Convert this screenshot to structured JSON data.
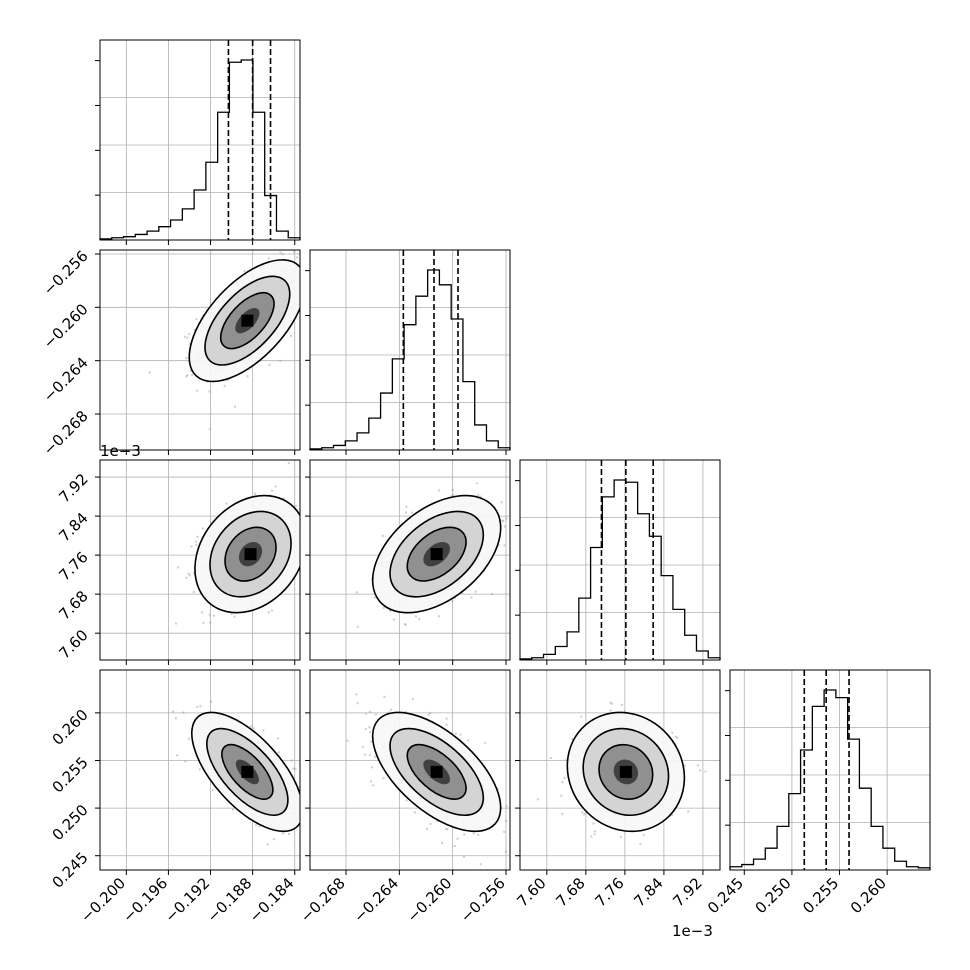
{
  "chart_data": {
    "type": "corner",
    "grid": true,
    "params": [
      {
        "range": [
          -0.2025,
          -0.1835
        ],
        "ticks": [
          -0.2,
          -0.196,
          -0.192,
          -0.188,
          -0.184
        ],
        "tick_labels": [
          "−0.200",
          "−0.196",
          "−0.192",
          "−0.188",
          "−0.184"
        ],
        "quantiles": [
          -0.1903,
          -0.188,
          -0.1863
        ],
        "offset_label": ""
      },
      {
        "range": [
          -0.2707,
          -0.2557
        ],
        "ticks": [
          -0.268,
          -0.264,
          -0.26,
          -0.256
        ],
        "tick_labels": [
          "−0.268",
          "−0.264",
          "−0.260",
          "−0.256"
        ],
        "quantiles": [
          -0.2637,
          -0.2614,
          -0.2596
        ],
        "offset_label": ""
      },
      {
        "range": [
          7.545,
          7.955
        ],
        "ticks": [
          7.6,
          7.68,
          7.76,
          7.84,
          7.92
        ],
        "tick_labels": [
          "7.60",
          "7.68",
          "7.76",
          "7.84",
          "7.92"
        ],
        "quantiles": [
          7.712,
          7.762,
          7.818
        ],
        "offset_label": "1e−3"
      },
      {
        "range": [
          0.2435,
          0.2645
        ],
        "ticks": [
          0.245,
          0.25,
          0.255,
          0.26
        ],
        "tick_labels": [
          "0.245",
          "0.250",
          "0.255",
          "0.260"
        ],
        "quantiles": [
          0.2513,
          0.2536,
          0.256
        ],
        "offset_label": ""
      }
    ],
    "histograms": [
      [
        1,
        2,
        3,
        5,
        8,
        12,
        18,
        28,
        45,
        70,
        115,
        160,
        162,
        115,
        40,
        8,
        2
      ],
      [
        1,
        2,
        4,
        8,
        15,
        28,
        50,
        80,
        110,
        135,
        158,
        145,
        115,
        60,
        22,
        8,
        2
      ],
      [
        1,
        2,
        5,
        12,
        25,
        55,
        100,
        145,
        160,
        158,
        130,
        110,
        75,
        45,
        22,
        8,
        2
      ],
      [
        3,
        5,
        10,
        20,
        40,
        70,
        110,
        150,
        165,
        158,
        120,
        75,
        40,
        20,
        8,
        3,
        2
      ]
    ],
    "pairs": [
      {
        "row": 1,
        "col": 0,
        "mean": [
          -0.1885,
          -0.261
        ],
        "sd": [
          0.0023,
          0.0019
        ],
        "corr": 0.6
      },
      {
        "row": 2,
        "col": 0,
        "mean": [
          -0.1882,
          7.762
        ],
        "sd": [
          0.0022,
          0.05
        ],
        "corr": 0.25
      },
      {
        "row": 2,
        "col": 1,
        "mean": [
          -0.2612,
          7.762
        ],
        "sd": [
          0.002,
          0.05
        ],
        "corr": 0.45
      },
      {
        "row": 3,
        "col": 0,
        "mean": [
          -0.1885,
          0.2538
        ],
        "sd": [
          0.0022,
          0.0026
        ],
        "corr": -0.65
      },
      {
        "row": 3,
        "col": 1,
        "mean": [
          -0.2612,
          0.2538
        ],
        "sd": [
          0.002,
          0.0026
        ],
        "corr": -0.6
      },
      {
        "row": 3,
        "col": 2,
        "mean": [
          7.762,
          0.2538
        ],
        "sd": [
          0.05,
          0.0026
        ],
        "corr": -0.1
      }
    ]
  }
}
